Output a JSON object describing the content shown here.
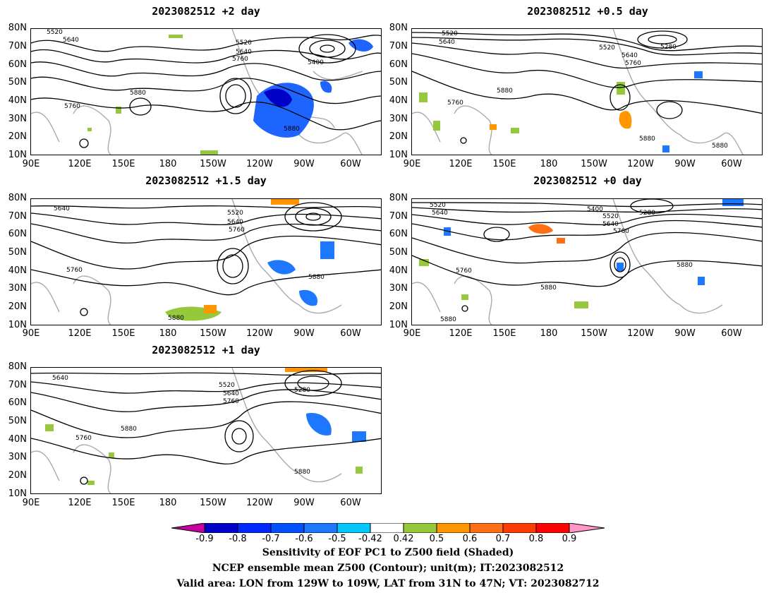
{
  "panels": [
    {
      "title": "2023082512 +2 day",
      "contour_labels": [
        "5520",
        "5640",
        "5520",
        "5640",
        "5760",
        "5400",
        "5880",
        "5760",
        "5880"
      ]
    },
    {
      "title": "2023082512 +0.5 day",
      "contour_labels": [
        "5520",
        "5640",
        "5520",
        "5640",
        "5760",
        "5280",
        "5880",
        "5760",
        "5880",
        "5880"
      ]
    },
    {
      "title": "2023082512 +1.5 day",
      "contour_labels": [
        "5640",
        "5520",
        "5640",
        "5760",
        "5760",
        "5880",
        "5880"
      ]
    },
    {
      "title": "2023082512 +0 day",
      "contour_labels": [
        "5520",
        "5640",
        "5400",
        "5520",
        "5640",
        "5280",
        "5760",
        "5760",
        "5880",
        "5880",
        "5880"
      ]
    },
    {
      "title": "2023082512 +1 day",
      "contour_labels": [
        "5640",
        "5520",
        "5640",
        "5760",
        "5280",
        "5880",
        "5760",
        "5880"
      ]
    }
  ],
  "axes": {
    "lat_ticks": [
      "80N",
      "70N",
      "60N",
      "50N",
      "40N",
      "30N",
      "20N",
      "10N"
    ],
    "lon_ticks": [
      "90E",
      "120E",
      "150E",
      "180",
      "150W",
      "120W",
      "90W",
      "60W"
    ]
  },
  "colorbar": {
    "labels": [
      "-0.9",
      "-0.8",
      "-0.7",
      "-0.6",
      "-0.5",
      "-0.42",
      "0.42",
      "0.5",
      "0.6",
      "0.7",
      "0.8",
      "0.9"
    ],
    "colors": [
      "#0000c8",
      "#0028ff",
      "#0050ff",
      "#1e78ff",
      "#00c8ff",
      "#ffffff",
      "#96c83c",
      "#ff9600",
      "#ff6e14",
      "#ff3c00",
      "#ff0000"
    ],
    "low_color": "#c800a0",
    "high_color": "#ff96c8"
  },
  "caption": {
    "line1": "Sensitivity of EOF PC1 to Z500 field (Shaded)",
    "line2": "NCEP ensemble mean Z500 (Contour); unit(m); IT:2023082512",
    "line3": "Valid area: LON from 129W to 109W, LAT from 31N to 47N; VT: 2023082712"
  }
}
